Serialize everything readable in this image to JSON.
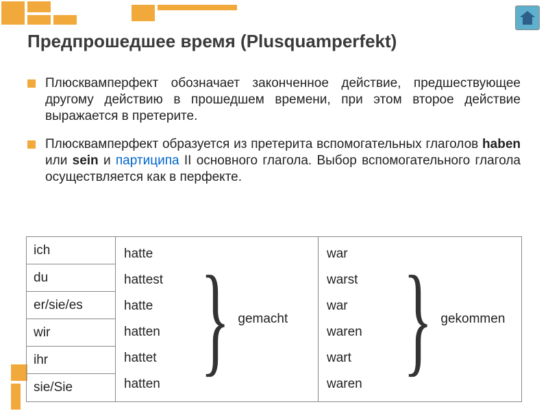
{
  "title": "Предпрошедшее время (Plusquamperfekt)",
  "bullets": [
    {
      "text": "Плюсквамперфект обозначает законченное действие, предшествующее другому действию в прошедшем времени, при этом второе действие выражается в претерите."
    },
    {
      "html": "Плюсквамперфект образуется из претерита вспомогательных глаголов <b>haben</b> или <b>sein</b> и <a>партиципа</a> II основного глагола. Выбор вспомогательного глагола осуществляется как в перфекте."
    }
  ],
  "pronouns": [
    "ich",
    "du",
    "er/sie/es",
    "wir",
    "ihr",
    "sie/Sie"
  ],
  "aux1": [
    "hatte",
    "hattest",
    "hatte",
    "hatten",
    "hattet",
    "hatten"
  ],
  "part1": "gemacht",
  "aux2": [
    "war",
    "warst",
    "war",
    "waren",
    "wart",
    "waren"
  ],
  "part2": "gekommen",
  "colors": {
    "accent": "#f2a93c",
    "home": "#5eb0cc",
    "link": "#0066cc"
  }
}
